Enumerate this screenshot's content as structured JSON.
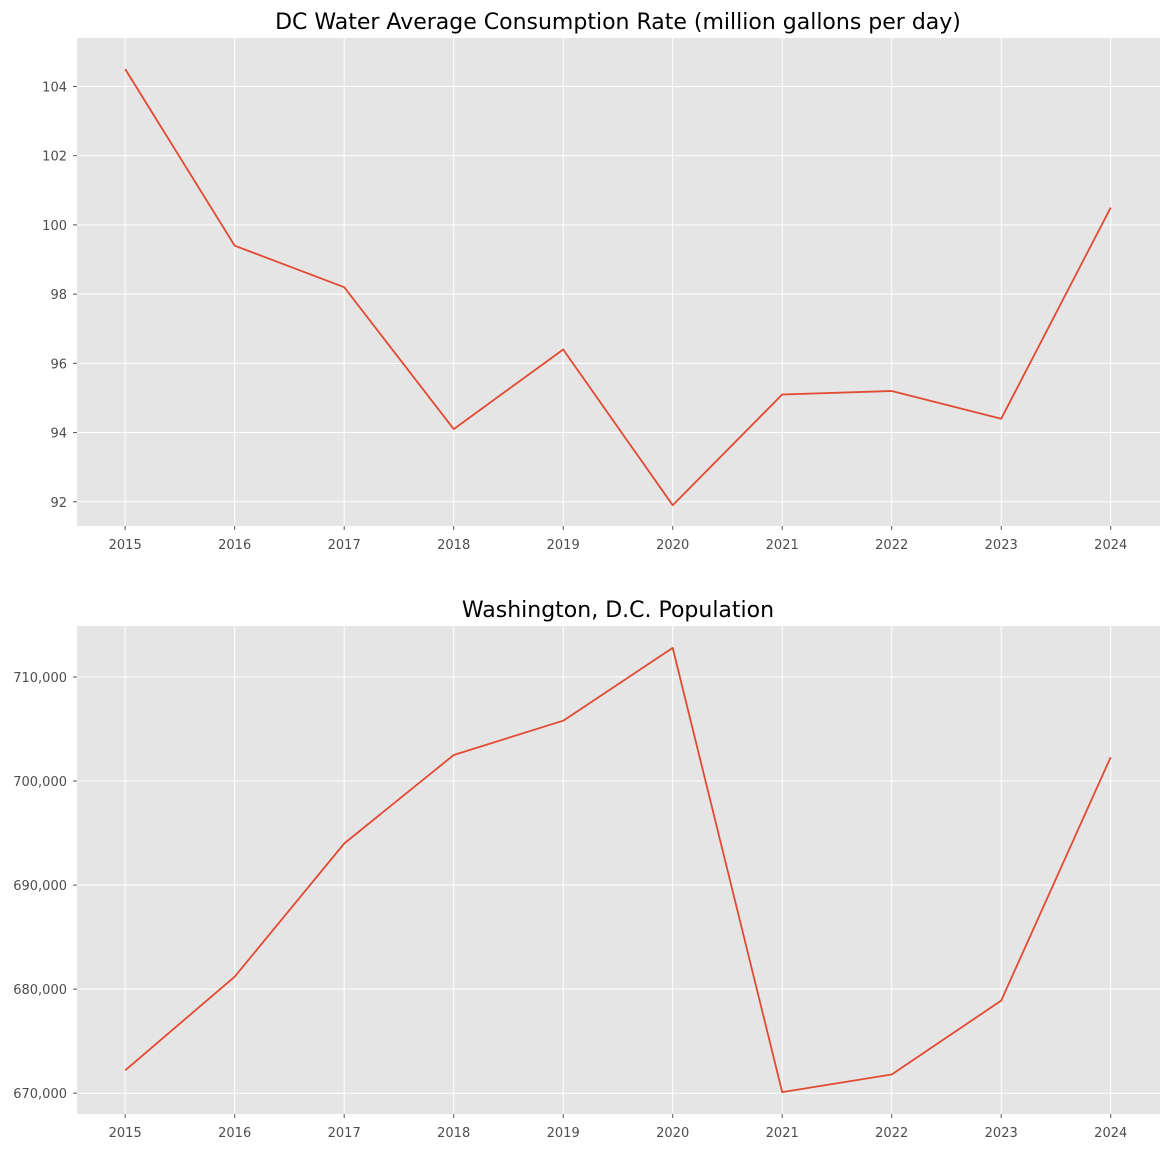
{
  "colors": {
    "series": "#e24a33",
    "plot_background": "#e5e5e5",
    "grid": "#ffffff"
  },
  "chart_data": [
    {
      "type": "line",
      "title": "DC Water Average Consumption Rate (million gallons per day)",
      "xlabel": "",
      "ylabel": "",
      "grid": true,
      "x": [
        2015,
        2016,
        2017,
        2018,
        2019,
        2020,
        2021,
        2022,
        2023,
        2024
      ],
      "x_tick_labels": [
        "2015",
        "2016",
        "2017",
        "2018",
        "2019",
        "2020",
        "2021",
        "2022",
        "2023",
        "2024"
      ],
      "y_tick_values": [
        92,
        94,
        96,
        98,
        100,
        102,
        104
      ],
      "y_tick_labels": [
        "92",
        "94",
        "96",
        "98",
        "100",
        "102",
        "104"
      ],
      "xlim": [
        2014.56,
        2024.45
      ],
      "ylim": [
        91.3,
        105.4
      ],
      "series": [
        {
          "values": [
            104.5,
            99.4,
            98.2,
            94.1,
            96.4,
            91.9,
            95.1,
            95.2,
            94.4,
            100.5
          ]
        }
      ]
    },
    {
      "type": "line",
      "title": "Washington, D.C. Population",
      "xlabel": "",
      "ylabel": "",
      "grid": true,
      "x": [
        2015,
        2016,
        2017,
        2018,
        2019,
        2020,
        2021,
        2022,
        2023,
        2024
      ],
      "x_tick_labels": [
        "2015",
        "2016",
        "2017",
        "2018",
        "2019",
        "2020",
        "2021",
        "2022",
        "2023",
        "2024"
      ],
      "y_tick_values": [
        670000,
        680000,
        690000,
        700000,
        710000
      ],
      "y_tick_labels": [
        "670,000",
        "680,000",
        "690,000",
        "700,000",
        "710,000"
      ],
      "xlim": [
        2014.56,
        2024.45
      ],
      "ylim": [
        668000,
        714900
      ],
      "series": [
        {
          "values": [
            672200,
            681200,
            694000,
            702500,
            705800,
            712800,
            670100,
            671800,
            678900,
            702300
          ]
        }
      ]
    }
  ]
}
